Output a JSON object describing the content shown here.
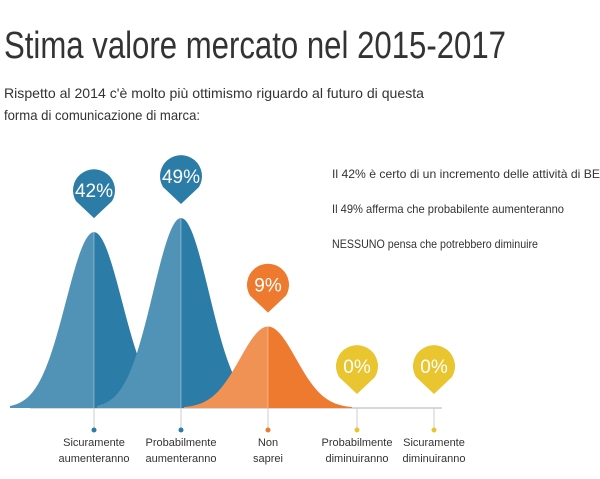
{
  "chart_data": {
    "type": "bell",
    "title": "Stima valore mercato nel 2015-2017",
    "subtitle": [
      "Rispetto al 2014 c'è molto più ottimismo riguardo al futuro di questa",
      "forma di comunicazione di marca:"
    ],
    "annotations": [
      "Il 42% è certo di un incremento delle attività di BE",
      "Il 49% afferma che probabilente aumenteranno",
      "NESSUNO pensa che potrebbero diminuire"
    ],
    "categories": [
      "Sicuramente aumenteranno",
      "Probabilmente aumenteranno",
      "Non saprei",
      "Probabilmente diminuiranno",
      "Sicuramente diminuiranno"
    ],
    "values": [
      42,
      49,
      9,
      0,
      0
    ],
    "value_labels": [
      "42%",
      "49%",
      "9%",
      "0%",
      "0%"
    ],
    "colors": [
      "#2b7ca6",
      "#2b7ca6",
      "#ee7a30",
      "#e9c630",
      "#e9c630"
    ]
  }
}
